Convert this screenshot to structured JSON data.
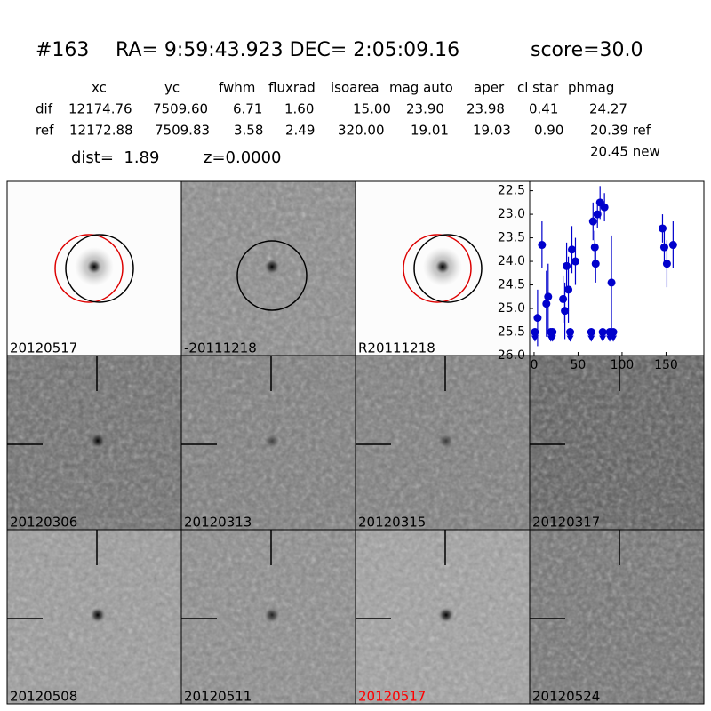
{
  "header": {
    "id": "#163",
    "coords": "RA= 9:59:43.923 DEC= 2:05:09.16",
    "score": "score=30.0"
  },
  "table": {
    "columns": [
      "xc",
      "yc",
      "fwhm",
      "fluxrad",
      "isoarea",
      "mag auto",
      "aper",
      "cl star",
      "phmag"
    ],
    "rows": [
      [
        "dif",
        "12174.76",
        "7509.60",
        "6.71",
        "1.60",
        "15.00",
        "23.90",
        "23.98",
        "0.41",
        "24.27"
      ],
      [
        "ref",
        "12172.88",
        "7509.83",
        "3.58",
        "2.49",
        "320.00",
        "19.01",
        "19.03",
        "0.90",
        "20.39 ref"
      ]
    ],
    "extra": "20.45 new",
    "dist": "dist=  1.89",
    "z": "z=0.0000"
  },
  "panels": [
    "20120517",
    "-20111218",
    "R20111218",
    "20120306",
    "20120313",
    "20120315",
    "20120317",
    "20120508",
    "20120511",
    "20120517",
    "20120524"
  ],
  "light_curve": {
    "type": "scatter",
    "color": "#0000cc",
    "xlim": [
      -5,
      193
    ],
    "ylim": [
      22.3,
      26.0
    ],
    "y_inverted": true,
    "xticks": [
      0,
      50,
      100,
      150
    ],
    "yticks": [
      {
        "value": 22.5,
        "label": "22.5"
      },
      {
        "value": 23.0,
        "label": "23.0"
      },
      {
        "value": 23.5,
        "label": "23.5"
      },
      {
        "value": 24.0,
        "label": "24.0"
      },
      {
        "value": 24.5,
        "label": "24.5"
      },
      {
        "value": 25.0,
        "label": "25.0"
      },
      {
        "value": 25.5,
        "label": "25.5"
      },
      {
        "value": 26.0,
        "label": "26.0"
      }
    ],
    "detections": {
      "x": [
        4,
        9,
        14,
        16,
        33,
        35,
        37,
        39,
        43,
        47,
        67,
        69,
        70,
        72,
        75,
        80,
        88,
        146,
        148,
        151,
        158
      ],
      "values": [
        25.2,
        23.65,
        24.9,
        24.75,
        24.8,
        25.05,
        24.1,
        24.6,
        23.75,
        24.0,
        23.15,
        23.7,
        24.05,
        23.0,
        22.75,
        22.85,
        24.45,
        23.3,
        23.7,
        24.05,
        23.65
      ],
      "errors": [
        0.6,
        0.5,
        0.7,
        0.7,
        0.5,
        0.6,
        0.5,
        0.7,
        0.5,
        0.5,
        0.4,
        0.35,
        0.4,
        0.3,
        0.35,
        0.3,
        1.0,
        0.3,
        0.4,
        0.5,
        0.5
      ]
    },
    "limits": {
      "x": [
        1,
        19,
        21,
        41,
        65,
        78,
        86,
        90
      ],
      "values": [
        25.5,
        25.5,
        25.5,
        25.5,
        25.5,
        25.5,
        25.5,
        25.5
      ]
    }
  }
}
